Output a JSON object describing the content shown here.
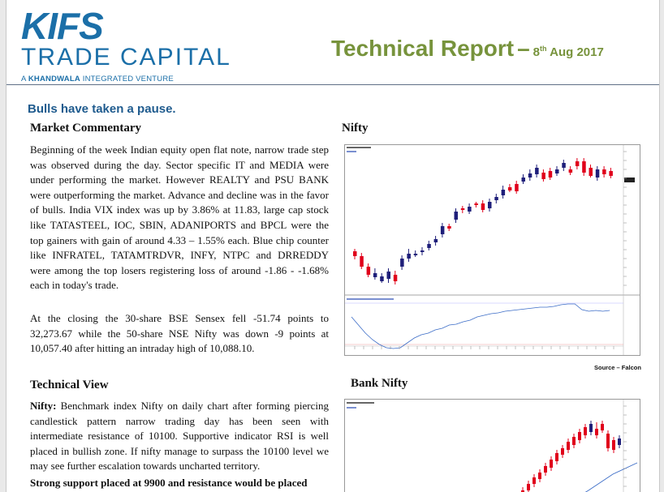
{
  "logo": {
    "brand": "KIFS",
    "name": "TRADE CAPITAL",
    "tag_prefix": "A",
    "tag_bold": "KHANDWALA",
    "tag_suffix": "INTEGRATED VENTURE"
  },
  "report": {
    "title": "Technical Report",
    "dash": "–",
    "date_day": "8",
    "date_suffix": "th",
    "date_rest": "Aug 2017"
  },
  "headline": "Bulls have taken a pause.",
  "market_commentary": {
    "heading": "Market Commentary",
    "paragraph1": "Beginning of the week Indian equity open flat note, narrow trade step was observed during the day. Sector specific IT and MEDIA were under performing the market. However REALTY and PSU BANK were outperforming the market. Advance and decline was in the favor of bulls. India VIX index was up by 3.86% at 11.83, large cap stock like TATASTEEL, IOC, SBIN, ADANIPORTS and BPCL were the top gainers with gain of around 4.33 – 1.55% each. Blue chip counter like INFRATEL, TATAMTRDVR, INFY, NTPC and DRREDDY were among the top losers registering loss of around -1.86 - -1.68% each in today's trade.",
    "paragraph2": "At the closing the 30-share BSE Sensex fell -51.74 points to 32,273.67 while the 50-share NSE Nifty was down -9 points at 10,057.40 after hitting an intraday high of 10,088.10."
  },
  "technical_view": {
    "heading": "Technical View",
    "nifty_label": "Nifty:",
    "nifty_text": "Benchmark index Nifty on daily chart after forming piercing candlestick pattern narrow trading day has been seen with intermediate resistance of 10100. Supportive indicator RSI is well placed in bullish zone. If nifty manage to surpass the 10100 level we may see further escalation towards uncharted territory.",
    "bold_line": "Strong support placed at 9900 and resistance would be placed"
  },
  "charts": {
    "nifty_heading": "Nifty",
    "banknifty_heading": "Bank Nifty",
    "source": "Source – Falcon"
  },
  "colors": {
    "brand_blue": "#1b6fa8",
    "title_green": "#77933c",
    "headline_blue": "#1f5b8e",
    "bull_candle": "#1f1f7a",
    "bear_candle": "#e0001b",
    "indicator_line": "#3b6cc7"
  }
}
